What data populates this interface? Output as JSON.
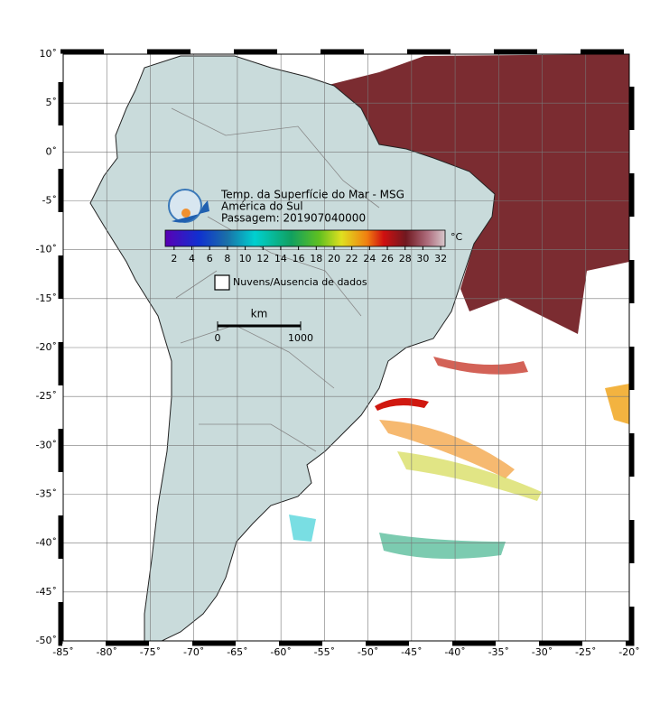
{
  "map": {
    "title": [
      "Temp. da Superfície do Mar - MSG",
      "América do Sul",
      "Passagem: 201907040000"
    ],
    "lonlim": [
      -85,
      -20
    ],
    "latlim": [
      -50,
      10
    ],
    "lon_ticks": [
      {
        "value": -85,
        "label": "-85˚"
      },
      {
        "value": -80,
        "label": "-80˚"
      },
      {
        "value": -75,
        "label": "-75˚"
      },
      {
        "value": -70,
        "label": "-70˚"
      },
      {
        "value": -65,
        "label": "-65˚"
      },
      {
        "value": -60,
        "label": "-60˚"
      },
      {
        "value": -55,
        "label": "-55˚"
      },
      {
        "value": -50,
        "label": "-50˚"
      },
      {
        "value": -45,
        "label": "-45˚"
      },
      {
        "value": -40,
        "label": "-40˚"
      },
      {
        "value": -35,
        "label": "-35˚"
      },
      {
        "value": -30,
        "label": "-30˚"
      },
      {
        "value": -25,
        "label": "-25˚"
      },
      {
        "value": -20,
        "label": "-20˚"
      }
    ],
    "lat_ticks": [
      {
        "value": 10,
        "label": "10˚"
      },
      {
        "value": 5,
        "label": "5˚"
      },
      {
        "value": 0,
        "label": "0˚"
      },
      {
        "value": -5,
        "label": "-5˚"
      },
      {
        "value": -10,
        "label": "-10˚"
      },
      {
        "value": -15,
        "label": "-15˚"
      },
      {
        "value": -20,
        "label": "-20˚"
      },
      {
        "value": -25,
        "label": "-25˚"
      },
      {
        "value": -30,
        "label": "-30˚"
      },
      {
        "value": -35,
        "label": "-35˚"
      },
      {
        "value": -40,
        "label": "-40˚"
      },
      {
        "value": -45,
        "label": "-45˚"
      },
      {
        "value": -50,
        "label": "-50˚"
      }
    ],
    "colorbar": {
      "unit": "°C",
      "lim": [
        1,
        32.5
      ],
      "ticks": [
        2,
        4,
        6,
        8,
        10,
        12,
        14,
        16,
        18,
        20,
        22,
        24,
        26,
        28,
        30,
        32
      ]
    },
    "legend": "Nuvens/Ausencia de dados",
    "scale": {
      "unit": "km",
      "ticks": [
        0,
        1000
      ]
    }
  }
}
